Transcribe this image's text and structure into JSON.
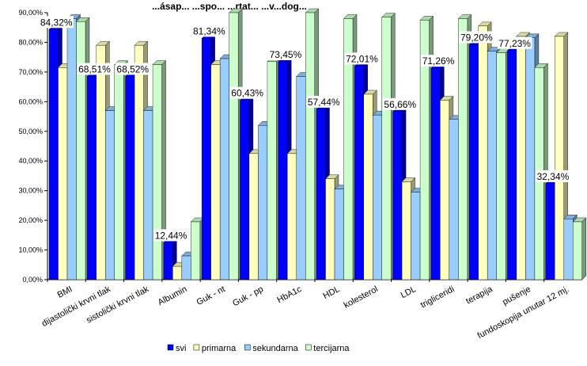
{
  "chart_data": {
    "type": "bar",
    "title": "...ásap... ...spo... ...rtat... ...v...dog...",
    "categories": [
      "BMI",
      "dijastolički krvni tlak",
      "sistolički krvni tlak",
      "Albumin",
      "Guk - nt",
      "Guk - pp",
      "HbA1c",
      "HDL",
      "kolesterol",
      "LDL",
      "trigliceridi",
      "terapija",
      "pušenje",
      "fundoskopija unutar 12 mj."
    ],
    "series": [
      {
        "name": "svi",
        "color": "#0000FF",
        "values": [
          84.32,
          68.51,
          68.52,
          12.44,
          81.34,
          60.43,
          73.45,
          57.44,
          72.01,
          56.66,
          71.26,
          79.2,
          77.23,
          32.34
        ]
      },
      {
        "name": "primarna",
        "color": "#FFFFC0",
        "values": [
          71.5,
          79.0,
          79.0,
          4.5,
          72.5,
          42.5,
          42.5,
          34.0,
          62.5,
          33.0,
          60.5,
          85.5,
          82.0,
          82.0
        ]
      },
      {
        "name": "sekundarna",
        "color": "#99CCFF",
        "values": [
          88.0,
          57.0,
          57.0,
          8.0,
          74.5,
          52.0,
          68.5,
          30.5,
          55.5,
          29.5,
          54.0,
          77.0,
          81.5,
          20.5
        ]
      },
      {
        "name": "tercijarna",
        "color": "#CCFFCC",
        "values": [
          87.0,
          72.5,
          72.5,
          19.5,
          90.0,
          73.5,
          90.0,
          88.0,
          88.5,
          87.5,
          88.0,
          76.5,
          71.5,
          19.5
        ]
      }
    ],
    "data_labels": [
      "84,32%",
      "68,51%",
      "68,52%",
      "12,44%",
      "81,34%",
      "60,43%",
      "73,45%",
      "57,44%",
      "72,01%",
      "56,66%",
      "71,26%",
      "79,20%",
      "77,23%",
      "32,34%"
    ],
    "y_ticks": [
      "0,00%",
      "10,00%",
      "20,00%",
      "30,00%",
      "40,00%",
      "50,00%",
      "60,00%",
      "70,00%",
      "80,00%",
      "90,00%"
    ],
    "ylim": [
      0,
      90
    ],
    "legend_position": "bottom",
    "grid": false,
    "style": "3d-clustered-column"
  }
}
